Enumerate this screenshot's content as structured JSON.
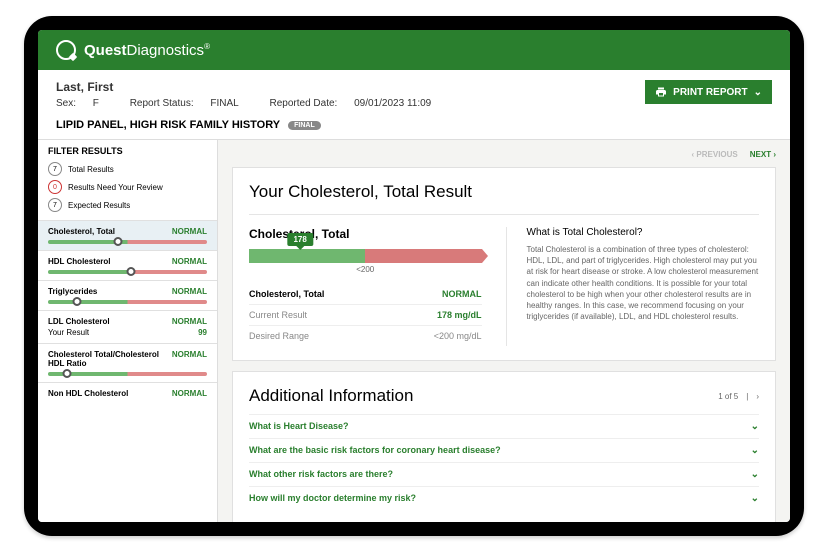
{
  "brand": {
    "bold": "Quest",
    "light": "Diagnostics",
    "reg": "®"
  },
  "patient": {
    "name": "Last, First",
    "sex_label": "Sex:",
    "sex": "F",
    "status_label": "Report Status:",
    "status": "FINAL",
    "reported_label": "Reported Date:",
    "reported": "09/01/2023 11:09"
  },
  "print_label": "PRINT REPORT",
  "panel_title": "LIPID PANEL, HIGH RISK FAMILY HISTORY",
  "panel_pill": "FINAL",
  "filter": {
    "header": "FILTER RESULTS",
    "total": {
      "count": "7",
      "label": "Total Results"
    },
    "review": {
      "count": "0",
      "label": "Results Need Your Review"
    },
    "expected": {
      "count": "7",
      "label": "Expected Results"
    }
  },
  "sidebar_items": [
    {
      "name": "Cholesterol, Total",
      "status": "NORMAL",
      "marker_pct": 44
    },
    {
      "name": "HDL Cholesterol",
      "status": "NORMAL",
      "marker_pct": 52
    },
    {
      "name": "Triglycerides",
      "status": "NORMAL",
      "marker_pct": 18
    },
    {
      "name": "LDL Cholesterol",
      "status": "NORMAL",
      "your_result_label": "Your Result",
      "your_result": "99"
    },
    {
      "name": "Cholesterol Total/Cholesterol HDL Ratio",
      "status": "NORMAL",
      "marker_pct": 12
    },
    {
      "name": "Non HDL Cholesterol",
      "status": "NORMAL"
    }
  ],
  "nav": {
    "prev": "PREVIOUS",
    "next": "NEXT"
  },
  "main": {
    "title": "Your Cholesterol, Total Result",
    "result_name": "Cholesterol, Total",
    "value_badge": "178",
    "threshold": "<200",
    "rows": [
      {
        "label": "Cholesterol, Total",
        "value": "NORMAL",
        "value_class": "green-text",
        "label_bold": true
      },
      {
        "label": "Current Result",
        "value": "178 mg/dL",
        "value_class": "green-text"
      },
      {
        "label": "Desired Range",
        "value": "<200 mg/dL",
        "value_class": "muted"
      }
    ],
    "info_title": "What is Total Cholesterol?",
    "info_text": "Total Cholesterol is a combination of three types of cholesterol: HDL, LDL, and part of triglycerides. High cholesterol may put you at risk for heart disease or stroke. A low cholesterol measurement can indicate other health conditions. It is possible for your total cholesterol to be high when your other cholesterol results are in healthy ranges. In this case, we recommend focusing on your triglycerides (if available), LDL, and HDL cholesterol results."
  },
  "additional": {
    "title": "Additional Information",
    "nav": "1 of 5",
    "faqs": [
      "What is Heart Disease?",
      "What are the basic risk factors for coronary heart disease?",
      "What other risk factors are there?",
      "How will my doctor determine my risk?"
    ]
  },
  "colors": {
    "brand_green": "#2a7f2e",
    "bar_green": "#6fb76f",
    "bar_red": "#d87a7a"
  }
}
